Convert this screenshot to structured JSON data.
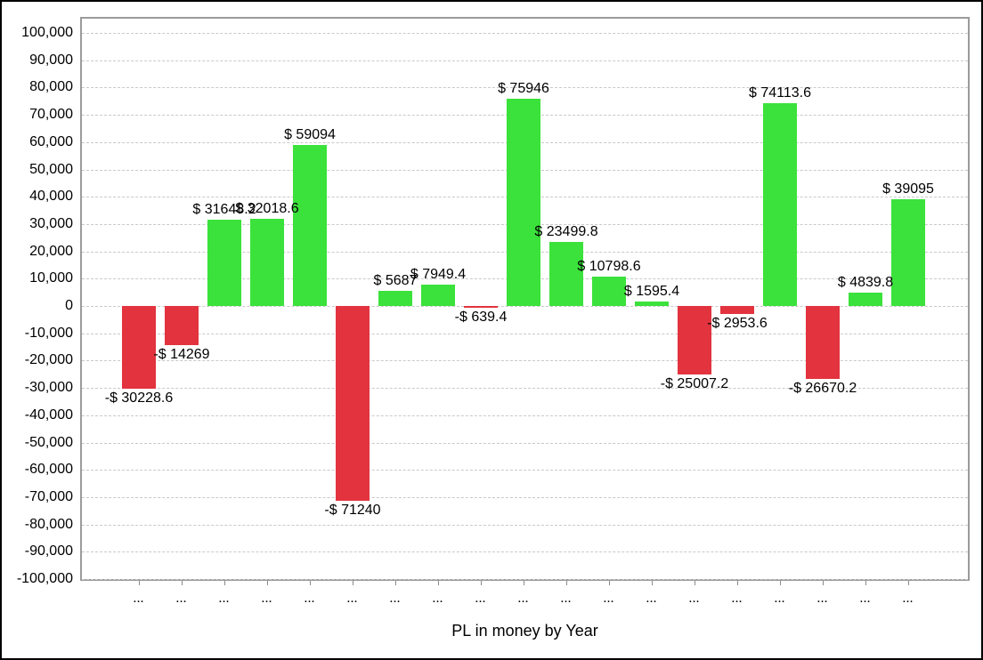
{
  "window": {
    "background": "#ffffff",
    "outer_border_color": "#000000",
    "plot_border_color": "#9b9b9b",
    "gridline_color": "#c9c9c9"
  },
  "chart_data": {
    "type": "bar",
    "title": "",
    "xlabel": "PL in money by Year",
    "ylabel": "",
    "legend_position": "none",
    "grid": "horizontal-dashed",
    "ylim": [
      -100000,
      100000
    ],
    "ytick_step": 10000,
    "y_tick_labels": [
      "100,000",
      "90,000",
      "80,000",
      "70,000",
      "60,000",
      "50,000",
      "40,000",
      "30,000",
      "20,000",
      "10,000",
      "0",
      "-10,000",
      "-20,000",
      "-30,000",
      "-40,000",
      "-50,000",
      "-60,000",
      "-70,000",
      "-80,000",
      "-90,000",
      "-100,000"
    ],
    "y_tick_values": [
      100000,
      90000,
      80000,
      70000,
      60000,
      50000,
      40000,
      30000,
      20000,
      10000,
      0,
      -10000,
      -20000,
      -30000,
      -40000,
      -50000,
      -60000,
      -70000,
      -80000,
      -90000,
      -100000
    ],
    "categories": [
      "...",
      "...",
      "...",
      "...",
      "...",
      "...",
      "...",
      "...",
      "...",
      "...",
      "...",
      "...",
      "...",
      "...",
      "...",
      "...",
      "...",
      "...",
      "..."
    ],
    "values": [
      -30228.6,
      -14269,
      31648.2,
      32018.6,
      59094,
      -71240,
      5687,
      7949.4,
      -639.4,
      75946,
      23499.8,
      10798.6,
      1595.4,
      -25007.2,
      -2953.6,
      74113.6,
      -26670.2,
      4839.8,
      39095
    ],
    "bar_labels": [
      "-$ 30228.6",
      "-$ 14269",
      "$ 31648.2",
      "$ 32018.6",
      "$ 59094",
      "-$ 71240",
      "$ 5687",
      "$ 7949.4",
      "-$ 639.4",
      "$ 75946",
      "$ 23499.8",
      "$ 10798.6",
      "$ 1595.4",
      "-$ 25007.2",
      "-$ 2953.6",
      "$ 74113.6",
      "-$ 26670.2",
      "$ 4839.8",
      "$ 39095"
    ],
    "colors": {
      "positive": "#3be23b",
      "negative": "#e2333e"
    }
  }
}
